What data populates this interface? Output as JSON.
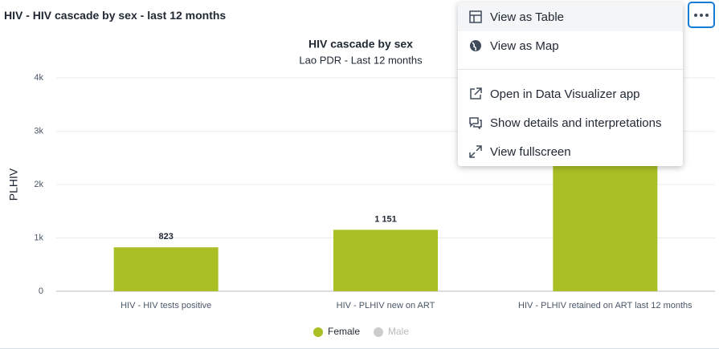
{
  "header": {
    "title": "HIV - HIV cascade by sex - last 12 months"
  },
  "chart_data": {
    "type": "bar",
    "title": "HIV cascade by sex",
    "subtitle": "Lao PDR - Last 12 months",
    "y_label": "PLHIV",
    "categories": [
      "HIV - HIV tests positive",
      "HIV - PLHIV new on ART",
      "HIV - PLHIV retained on ART last 12 months"
    ],
    "series": [
      {
        "name": "Female",
        "color": "#a9bf24",
        "values": [
          823,
          1151,
          2600
        ],
        "value_labels": [
          "823",
          "1 151",
          null
        ]
      },
      {
        "name": "Male",
        "color": "#cccccc",
        "values": [
          null,
          null,
          null
        ]
      }
    ],
    "ylim": [
      0,
      4000
    ],
    "yticks": [
      0,
      {
        "value": 1000,
        "label": "1k"
      },
      {
        "value": 2000,
        "label": "2k"
      },
      {
        "value": 3000,
        "label": "3k"
      },
      {
        "value": 4000,
        "label": "4k"
      }
    ],
    "grid": true
  },
  "menu": {
    "items": [
      "View as Table",
      "View as Map",
      "Open in Data Visualizer app",
      "Show details and interpretations",
      "View fullscreen"
    ]
  }
}
